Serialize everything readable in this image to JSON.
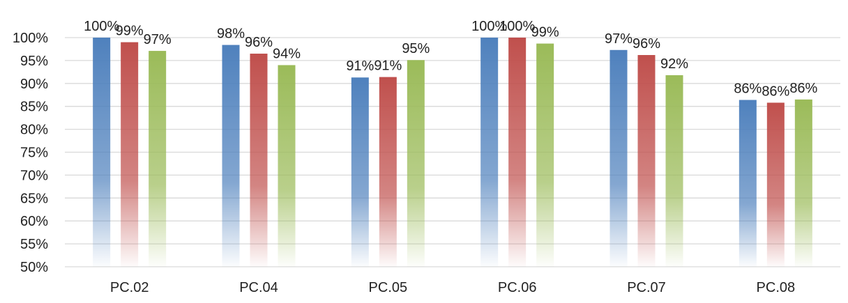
{
  "chart_data": {
    "type": "bar",
    "title": "",
    "xlabel": "",
    "ylabel": "",
    "ylim": [
      50,
      100
    ],
    "yticks": [
      "50%",
      "55%",
      "60%",
      "65%",
      "70%",
      "75%",
      "80%",
      "85%",
      "90%",
      "95%",
      "100%"
    ],
    "grid": true,
    "legend": "none",
    "categories": [
      "PC.02",
      "PC.04",
      "PC.05",
      "PC.06",
      "PC.07",
      "PC.08"
    ],
    "series": [
      {
        "color": "#4f81bd",
        "values": [
          100,
          98.4,
          91.3,
          100,
          97.3,
          86.4
        ],
        "labels": [
          "100%",
          "98%",
          "91%",
          "100%",
          "97%",
          "86%"
        ]
      },
      {
        "color": "#c0504d",
        "values": [
          99.0,
          96.5,
          91.4,
          100,
          96.2,
          85.8
        ],
        "labels": [
          "99%",
          "96%",
          "91%",
          "100%",
          "96%",
          "86%"
        ]
      },
      {
        "color": "#9bbb59",
        "values": [
          97.1,
          94.0,
          95.1,
          98.7,
          91.8,
          86.5
        ],
        "labels": [
          "97%",
          "94%",
          "95%",
          "99%",
          "92%",
          "86%"
        ]
      }
    ]
  }
}
